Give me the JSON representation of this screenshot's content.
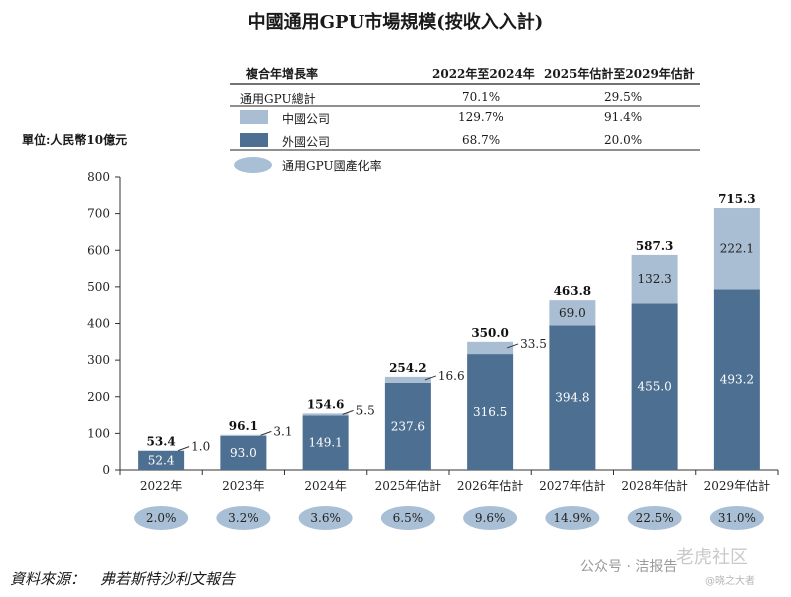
{
  "title": "中國通用GPU市場規模(按收入入計)",
  "unit_label": "單位:人民幣10億元",
  "source": "資料來源：　弗若斯特沙利文報告",
  "watermark": {
    "account": "公众号 · 洁报告",
    "overlay": "老虎社区",
    "handle": "@晓之大者"
  },
  "colors": {
    "domestic": "#a9bdd3",
    "foreign": "#4d6f92",
    "rate_ellipse": "#a9bfd6"
  },
  "cagr_table": {
    "headers": [
      "複合年增長率",
      "2022年至2024年",
      "2025年估計至2029年估計"
    ],
    "rows": [
      {
        "label": "通用GPU總計",
        "v1": "70.1%",
        "v2": "29.5%"
      },
      {
        "label": "中國公司",
        "v1": "129.7%",
        "v2": "91.4%"
      },
      {
        "label": "外國公司",
        "v1": "68.7%",
        "v2": "20.0%"
      }
    ],
    "rate_legend": "通用GPU國產化率"
  },
  "chart_data": {
    "type": "bar",
    "stacked": true,
    "categories": [
      "2022年",
      "2023年",
      "2024年",
      "2025年估計",
      "2026年估計",
      "2027年估計",
      "2028年估計",
      "2029年估計"
    ],
    "series": [
      {
        "name": "外國公司",
        "values": [
          52.4,
          93.0,
          149.1,
          237.6,
          316.5,
          394.8,
          455.0,
          493.2
        ]
      },
      {
        "name": "中國公司",
        "values": [
          1.0,
          3.1,
          5.5,
          16.6,
          33.5,
          69.0,
          132.3,
          222.1
        ]
      }
    ],
    "totals": [
      53.4,
      96.1,
      154.6,
      254.2,
      350.0,
      463.8,
      587.3,
      715.3
    ],
    "localization_rate": [
      "2.0%",
      "3.2%",
      "3.6%",
      "6.5%",
      "9.6%",
      "14.9%",
      "22.5%",
      "31.0%"
    ],
    "ylim": [
      0,
      800
    ],
    "yticks": [
      0,
      100,
      200,
      300,
      400,
      500,
      600,
      700,
      800
    ],
    "ylabel": "單位:人民幣10億元",
    "grid": false,
    "legend": "top"
  }
}
